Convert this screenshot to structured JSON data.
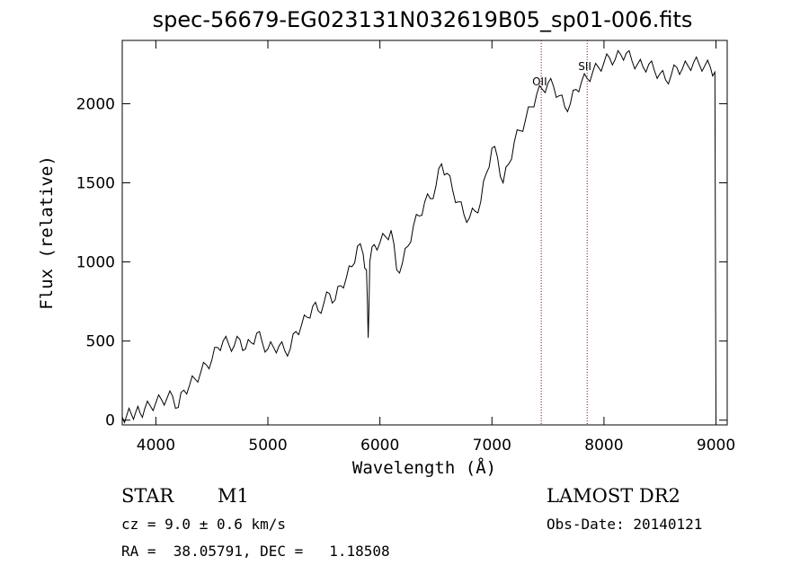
{
  "chart_data": {
    "type": "line",
    "title": "spec-56679-EG023131N032619B05_sp01-006.fits",
    "xlabel": "Wavelength (Å)",
    "ylabel": "Flux (relative)",
    "xlim": [
      3700,
      9100
    ],
    "ylim": [
      -30,
      2400
    ],
    "xticks": [
      4000,
      5000,
      6000,
      7000,
      8000,
      9000
    ],
    "yticks": [
      0,
      500,
      1000,
      1500,
      2000
    ],
    "grid": false,
    "line_color": "#000000",
    "marker_color": "#8b0000",
    "annotations": [
      {
        "label": "OII",
        "x": 7440
      },
      {
        "label": "SII",
        "x": 7850
      }
    ],
    "series": [
      {
        "x": [
          3700,
          3740,
          3780,
          3820,
          3860,
          3900,
          3950,
          4000,
          4050,
          4100,
          4150,
          4200,
          4250,
          4300,
          4350,
          4400,
          4450,
          4500,
          4550,
          4600,
          4650,
          4700,
          4750,
          4800,
          4850,
          4900,
          4950,
          5000,
          5050,
          5100,
          5150,
          5200,
          5250,
          5300,
          5350,
          5400,
          5450,
          5500,
          5550,
          5600,
          5650,
          5700,
          5750,
          5800,
          5850,
          5880,
          5895,
          5910,
          5950,
          6000,
          6050,
          6100,
          6150,
          6200,
          6250,
          6300,
          6350,
          6400,
          6450,
          6500,
          6550,
          6600,
          6650,
          6700,
          6750,
          6800,
          6850,
          6900,
          6950,
          7000,
          7050,
          7100,
          7150,
          7200,
          7250,
          7300,
          7350,
          7400,
          7450,
          7500,
          7550,
          7600,
          7650,
          7700,
          7750,
          7800,
          7850,
          7900,
          7950,
          8000,
          8050,
          8100,
          8150,
          8200,
          8250,
          8300,
          8350,
          8400,
          8450,
          8500,
          8550,
          8600,
          8650,
          8700,
          8750,
          8800,
          8850,
          8900,
          8950,
          8990,
          9000
        ],
        "y": [
          20,
          30,
          40,
          50,
          45,
          70,
          90,
          110,
          130,
          140,
          150,
          80,
          190,
          220,
          260,
          300,
          350,
          380,
          460,
          500,
          480,
          470,
          510,
          450,
          490,
          550,
          490,
          450,
          460,
          470,
          440,
          450,
          560,
          600,
          650,
          720,
          690,
          740,
          800,
          760,
          850,
          900,
          970,
          1100,
          1050,
          950,
          520,
          1000,
          1110,
          1120,
          1160,
          1200,
          950,
          990,
          1100,
          1230,
          1290,
          1380,
          1400,
          1480,
          1620,
          1560,
          1450,
          1380,
          1300,
          1280,
          1320,
          1380,
          1560,
          1720,
          1660,
          1500,
          1620,
          1760,
          1830,
          1900,
          1980,
          2060,
          2090,
          2130,
          2110,
          2050,
          1980,
          2000,
          2090,
          2140,
          2160,
          2200,
          2230,
          2260,
          2290,
          2280,
          2310,
          2320,
          2270,
          2250,
          2230,
          2250,
          2210,
          2190,
          2150,
          2180,
          2230,
          2220,
          2240,
          2260,
          2250,
          2240,
          2230,
          2200,
          0
        ]
      }
    ]
  },
  "footer": {
    "object_class": "STAR",
    "object_subclass": "M1",
    "survey": "LAMOST DR2",
    "cz": "cz = 9.0 ± 0.6 km/s",
    "obs_date": "Obs-Date: 20140121",
    "coords": "RA =  38.05791, DEC =   1.18508"
  }
}
